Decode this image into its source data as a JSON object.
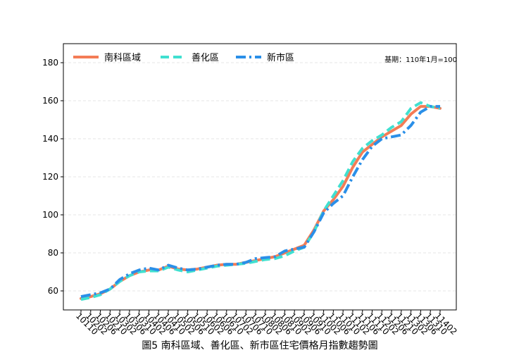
{
  "chart_data": {
    "type": "line",
    "title": "圖5 南科區域、善化區、新市區住宅價格月指數趨勢圖",
    "annotation": "基期：110年1月=100",
    "categories": [
      "10110",
      "10202",
      "10206",
      "10210",
      "10302",
      "10306",
      "10310",
      "10402",
      "10406",
      "10410",
      "10502",
      "10506",
      "10510",
      "10602",
      "10606",
      "10610",
      "10702",
      "10706",
      "10710",
      "10802",
      "10806",
      "10810",
      "10902",
      "10906",
      "10910",
      "11002",
      "11006",
      "11010",
      "11102",
      "11106",
      "11110",
      "11202",
      "11206",
      "11210",
      "11302",
      "11306",
      "11310",
      "11402"
    ],
    "series": [
      {
        "name": "南科區域",
        "color": "#f47c56",
        "dash": "solid",
        "values": [
          56,
          57,
          58.5,
          61,
          65,
          68,
          70,
          71,
          71,
          73,
          71.5,
          71,
          71.5,
          72.5,
          73.5,
          74,
          74,
          75,
          76,
          77,
          78,
          80,
          82,
          84,
          92,
          102,
          108,
          115,
          125,
          133,
          137,
          141,
          144,
          147,
          153,
          157,
          157,
          156
        ]
      },
      {
        "name": "善化區",
        "color": "#40e0d0",
        "dash": "dashed",
        "values": [
          55.5,
          56.5,
          58,
          61,
          65,
          68,
          70,
          70.5,
          70.5,
          72.5,
          71,
          70,
          71,
          72,
          73,
          73.5,
          74,
          74.5,
          75.5,
          76.5,
          77,
          78.5,
          81,
          83,
          91,
          102,
          110,
          118,
          128,
          135,
          139,
          142,
          146,
          149,
          156,
          159,
          157,
          156
        ]
      },
      {
        "name": "新市區",
        "color": "#2a8fe8",
        "dash": "dashdot",
        "values": [
          57,
          58,
          59,
          61,
          66,
          69,
          71,
          72,
          71,
          73.5,
          72,
          71,
          71.5,
          72.5,
          73.5,
          74,
          74,
          75,
          77,
          77.5,
          78,
          81,
          82,
          83,
          91,
          101,
          106,
          110,
          120,
          129,
          136,
          140,
          141,
          142,
          147,
          154,
          157,
          157
        ]
      }
    ],
    "ylim": [
      50,
      190
    ],
    "yticks": [
      60,
      80,
      100,
      120,
      140,
      160,
      180
    ],
    "grid": true,
    "legend": "upper-left"
  }
}
